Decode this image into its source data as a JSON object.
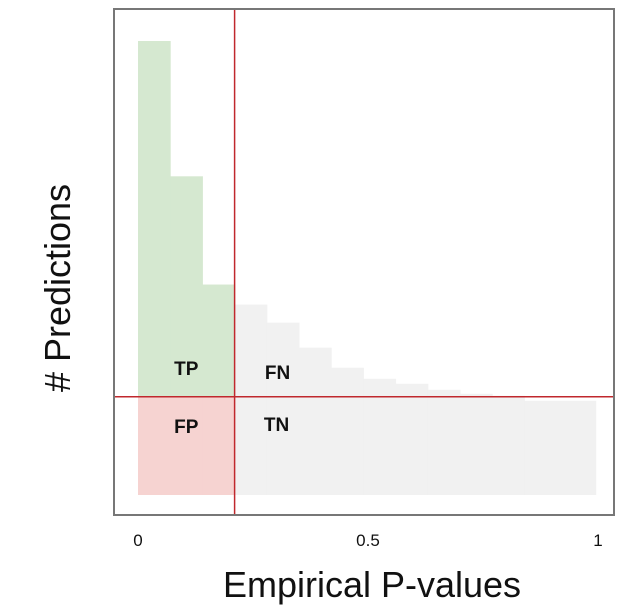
{
  "chart_data": {
    "type": "bar",
    "xlabel": "Empirical P-values",
    "ylabel": "# Predictions",
    "xlim": [
      0,
      1
    ],
    "x_ticks": [
      {
        "value": 0,
        "label": "0"
      },
      {
        "value": 0.5,
        "label": "0.5"
      },
      {
        "value": 1,
        "label": "1"
      }
    ],
    "threshold_x": 0.21,
    "threshold_y": 98,
    "ylim": [
      0,
      453
    ],
    "grid": false,
    "bins": [
      {
        "x0": 0.0,
        "x1": 0.07,
        "value": 453,
        "color": "#d5e8d0"
      },
      {
        "x0": 0.07,
        "x1": 0.14,
        "value": 318,
        "color": "#d5e8d0"
      },
      {
        "x0": 0.14,
        "x1": 0.21,
        "value": 210,
        "color": "#d5e8d0"
      },
      {
        "x0": 0.21,
        "x1": 0.28,
        "value": 190,
        "color": "#f1f1f1"
      },
      {
        "x0": 0.28,
        "x1": 0.35,
        "value": 172,
        "color": "#f1f1f1"
      },
      {
        "x0": 0.35,
        "x1": 0.42,
        "value": 147,
        "color": "#f1f1f1"
      },
      {
        "x0": 0.42,
        "x1": 0.49,
        "value": 127,
        "color": "#f1f1f1"
      },
      {
        "x0": 0.49,
        "x1": 0.56,
        "value": 116,
        "color": "#f1f1f1"
      },
      {
        "x0": 0.56,
        "x1": 0.63,
        "value": 111,
        "color": "#f1f1f1"
      },
      {
        "x0": 0.63,
        "x1": 0.7,
        "value": 105,
        "color": "#f1f1f1"
      },
      {
        "x0": 0.7,
        "x1": 0.77,
        "value": 101,
        "color": "#f1f1f1"
      },
      {
        "x0": 0.77,
        "x1": 0.84,
        "value": 99,
        "color": "#f1f1f1"
      },
      {
        "x0": 0.84,
        "x1": 0.995,
        "value": 94,
        "color": "#f1f1f1"
      }
    ],
    "fp_color": "#f6d3d1",
    "threshold_color": "#c0282d",
    "frame_color": "#777777",
    "regions": [
      {
        "label": "TP",
        "position": "left-above"
      },
      {
        "label": "FN",
        "position": "right-above"
      },
      {
        "label": "FP",
        "position": "left-below"
      },
      {
        "label": "TN",
        "position": "right-below"
      }
    ]
  }
}
